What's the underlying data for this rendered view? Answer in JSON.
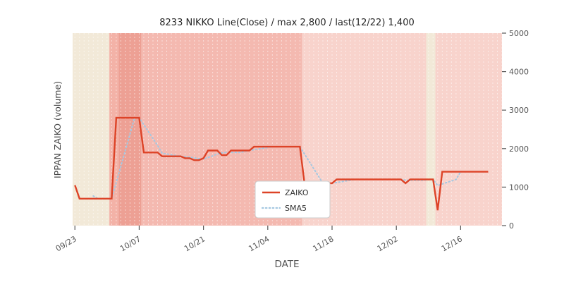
{
  "chart_data": {
    "type": "line",
    "title": "8233 NIKKO Line(Close) / max 2,800 / last(12/22) 1,400",
    "xlabel": "DATE",
    "ylabel": "IPPAN ZAIKO (volume)",
    "ylim": [
      0,
      5000
    ],
    "yticks": [
      0,
      1000,
      2000,
      3000,
      4000,
      5000
    ],
    "ytick_labels": [
      "0",
      "1000",
      "2000",
      "3000",
      "4000",
      "5000"
    ],
    "x_axis": {
      "start_date": "09/23",
      "unit": "day index from 09/23",
      "xlim_days": [
        -0.5,
        93
      ],
      "ticks": [
        {
          "day": 0,
          "label": "09/23"
        },
        {
          "day": 14,
          "label": "10/07"
        },
        {
          "day": 28,
          "label": "10/21"
        },
        {
          "day": 42,
          "label": "11/04"
        },
        {
          "day": 56,
          "label": "11/18"
        },
        {
          "day": 70,
          "label": "12/02"
        },
        {
          "day": 84,
          "label": "12/16"
        }
      ]
    },
    "grid": {
      "vertical_dashed_daily": true,
      "color": "#ffffff"
    },
    "legend": {
      "position": "lower center",
      "entries": [
        "ZAIKO",
        "SMA5"
      ]
    },
    "series": [
      {
        "name": "ZAIKO",
        "style": "solid",
        "color": "#dd4327",
        "line_width": 2.4,
        "max": 2800,
        "last_date": "12/22",
        "last_value": 1400,
        "values": [
          1050,
          700,
          700,
          700,
          700,
          700,
          700,
          700,
          700,
          2800,
          2800,
          2800,
          2800,
          2800,
          2800,
          1900,
          1900,
          1900,
          1900,
          1800,
          1800,
          1800,
          1800,
          1800,
          1750,
          1750,
          1700,
          1700,
          1750,
          1950,
          1950,
          1950,
          1830,
          1830,
          1950,
          1950,
          1950,
          1950,
          1950,
          2050,
          2050,
          2050,
          2050,
          2050,
          2050,
          2050,
          2050,
          2050,
          2050,
          2050,
          1100,
          1100,
          1100,
          1100,
          1100,
          1100,
          1100,
          1200,
          1200,
          1200,
          1200,
          1200,
          1200,
          1200,
          1200,
          1200,
          1200,
          1200,
          1200,
          1200,
          1200,
          1200,
          1100,
          1200,
          1200,
          1200,
          1200,
          1200,
          1200,
          400,
          1400,
          1400,
          1400,
          1400,
          1400,
          1400,
          1400,
          1400,
          1400,
          1400,
          1400
        ]
      },
      {
        "name": "SMA5",
        "style": "dotted",
        "color": "#a5c8e1",
        "line_width": 2,
        "derived": "5-day moving average of ZAIKO",
        "window": 5
      }
    ],
    "background_bands": [
      {
        "from_day": -0.5,
        "to_day": 7.5,
        "color": "#f2e9d8"
      },
      {
        "from_day": 7.5,
        "to_day": 9.5,
        "color": "#f3b2a7"
      },
      {
        "from_day": 9.5,
        "to_day": 14.5,
        "color": "#eda094"
      },
      {
        "from_day": 14.5,
        "to_day": 49.5,
        "color": "#f4b9b0"
      },
      {
        "from_day": 49.5,
        "to_day": 76.5,
        "color": "#f8d3cc"
      },
      {
        "from_day": 76.5,
        "to_day": 78.5,
        "color": "#f2e9d8"
      },
      {
        "from_day": 78.5,
        "to_day": 93,
        "color": "#f8d3cc"
      }
    ]
  }
}
